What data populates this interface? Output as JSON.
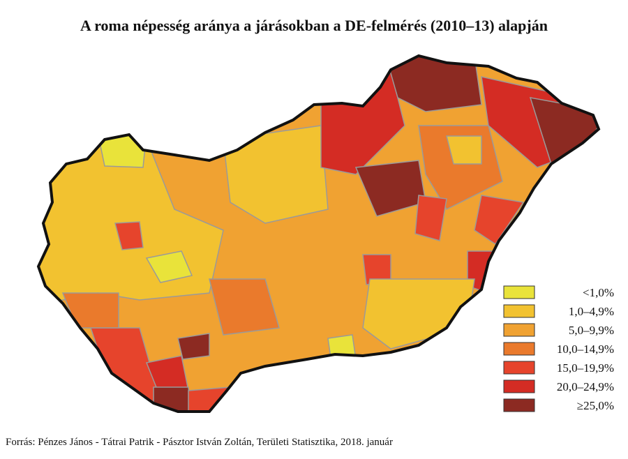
{
  "title": "A roma népesség aránya a járásokban a DE-felmérés (2010–13) alapján",
  "legend": [
    {
      "label": "<1,0%",
      "color": "#e9e33a"
    },
    {
      "label": "1,0–4,9%",
      "color": "#f2c230"
    },
    {
      "label": "5,0–9,9%",
      "color": "#f0a232"
    },
    {
      "label": "10,0–14,9%",
      "color": "#ea7a2c"
    },
    {
      "label": "15,0–19,9%",
      "color": "#e6442c"
    },
    {
      "label": "20,0–24,9%",
      "color": "#d42c24"
    },
    {
      "label": "≥25,0%",
      "color": "#8c2a22"
    }
  ],
  "source": "Forrás: Pénzes János - Tátrai Patrik - Pásztor István Zoltán, Területi Statisztika, 2018. január"
}
